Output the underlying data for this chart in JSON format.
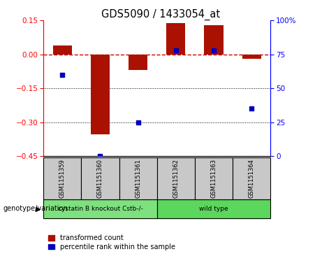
{
  "title": "GDS5090 / 1433054_at",
  "samples": [
    "GSM1151359",
    "GSM1151360",
    "GSM1151361",
    "GSM1151362",
    "GSM1151363",
    "GSM1151364"
  ],
  "red_values": [
    0.04,
    -0.355,
    -0.07,
    0.138,
    0.128,
    -0.02
  ],
  "blue_values": [
    60,
    0,
    25,
    78,
    78,
    35
  ],
  "ylim_left": [
    -0.45,
    0.15
  ],
  "ylim_right": [
    0,
    100
  ],
  "yticks_left": [
    -0.45,
    -0.3,
    -0.15,
    0.0,
    0.15
  ],
  "yticks_right": [
    0,
    25,
    50,
    75,
    100
  ],
  "groups": [
    {
      "label": "cystatin B knockout Cstb-/-",
      "indices": [
        0,
        1,
        2
      ],
      "color": "#7EE07E"
    },
    {
      "label": "wild type",
      "indices": [
        3,
        4,
        5
      ],
      "color": "#5CD65C"
    }
  ],
  "bar_color": "#AA1100",
  "dot_color": "#0000BB",
  "zero_line_color": "#CC0000",
  "grid_color": "black",
  "bg_plot": "white",
  "bg_label": "#C8C8C8",
  "legend_red_label": "transformed count",
  "legend_blue_label": "percentile rank within the sample",
  "bar_width": 0.5,
  "dot_size": 25,
  "group_label": "genotype/variation"
}
